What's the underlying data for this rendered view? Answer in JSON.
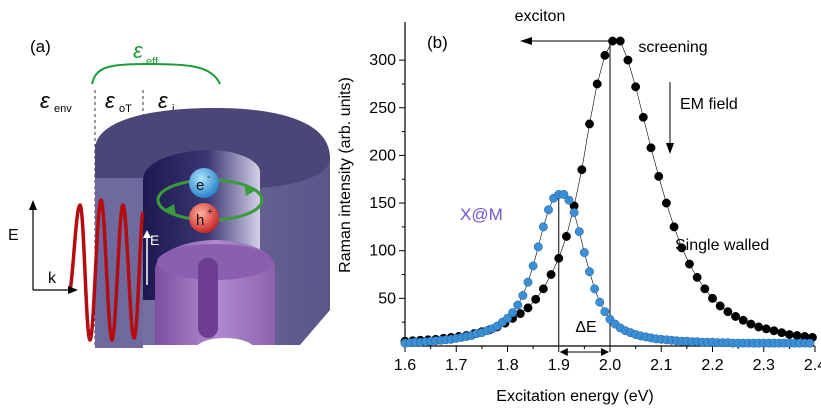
{
  "figure": {
    "panel_a_label": "(a)",
    "panel_b_label": "(b)"
  },
  "schematic": {
    "eps_eff": "ε",
    "eps_eff_sub": "eff",
    "eps_env": "ε",
    "eps_env_sub": "env",
    "eps_oT": "ε",
    "eps_oT_sub": "oT",
    "eps_i": "ε",
    "eps_i_sub": "i",
    "label_E_outer": "E",
    "label_k": "k",
    "label_E_inner": "E",
    "electron_label": "e",
    "electron_sup": "-",
    "hole_label": "h",
    "hole_sup": "+",
    "colors": {
      "eps_eff": "#1a9c3a",
      "tube_dark": "#4a4678",
      "tube_mid": "#6b6699",
      "tube_light": "#b9b4d6",
      "inner_tube": "#9a72b8",
      "wave": "#b30d12",
      "electron": "#2b8fd6",
      "hole": "#d62b2b",
      "arrow_green": "#3b9b3b"
    }
  },
  "annotations": {
    "exciton": "exciton",
    "screening": "screening",
    "em_field": "EM field",
    "xm_label": "X@M",
    "single_walled": "Single walled",
    "delta_e": "ΔE"
  },
  "chart_data": {
    "type": "scatter",
    "xlabel": "Excitation energy (eV)",
    "ylabel": "Raman intensity (arb. units)",
    "xlim": [
      1.6,
      2.4
    ],
    "ylim": [
      0,
      340
    ],
    "x_ticks": [
      "1.6",
      "1.7",
      "1.8",
      "1.9",
      "2.0",
      "2.1",
      "2.2",
      "2.3",
      "2.4"
    ],
    "y_ticks": [
      "50",
      "100",
      "150",
      "200",
      "250",
      "300"
    ],
    "x_tick_values": [
      1.6,
      1.7,
      1.8,
      1.9,
      2.0,
      2.1,
      2.2,
      2.3,
      2.4
    ],
    "y_tick_values": [
      50,
      100,
      150,
      200,
      250,
      300
    ],
    "grid": false,
    "series": [
      {
        "name": "Single walled",
        "color": "#000000",
        "x": [
          1.6,
          1.615,
          1.63,
          1.645,
          1.66,
          1.675,
          1.69,
          1.705,
          1.72,
          1.735,
          1.75,
          1.765,
          1.78,
          1.795,
          1.81,
          1.825,
          1.84,
          1.855,
          1.87,
          1.885,
          1.9,
          1.915,
          1.93,
          1.945,
          1.96,
          1.975,
          1.99,
          2.005,
          2.02,
          2.035,
          2.05,
          2.065,
          2.08,
          2.095,
          2.11,
          2.125,
          2.14,
          2.155,
          2.17,
          2.185,
          2.2,
          2.215,
          2.23,
          2.245,
          2.26,
          2.275,
          2.29,
          2.305,
          2.32,
          2.335,
          2.35,
          2.365,
          2.38,
          2.395
        ],
        "values": [
          5,
          5.5,
          6,
          6.5,
          7,
          8,
          9,
          10,
          11,
          13,
          15,
          17,
          20,
          24,
          29,
          34,
          40,
          49,
          60,
          75,
          92,
          115,
          147,
          185,
          233,
          275,
          305,
          320,
          320,
          300,
          272,
          240,
          208,
          178,
          150,
          125,
          103,
          86,
          72,
          60,
          50,
          42,
          36,
          31,
          27,
          23,
          20,
          18,
          16,
          14,
          12,
          11,
          10,
          9
        ]
      },
      {
        "name": "X@M",
        "color": "#3a8fd6",
        "x": [
          1.6,
          1.61,
          1.62,
          1.63,
          1.64,
          1.65,
          1.66,
          1.67,
          1.68,
          1.69,
          1.7,
          1.71,
          1.72,
          1.73,
          1.74,
          1.75,
          1.76,
          1.77,
          1.78,
          1.79,
          1.8,
          1.81,
          1.82,
          1.83,
          1.84,
          1.85,
          1.86,
          1.87,
          1.88,
          1.89,
          1.9,
          1.91,
          1.92,
          1.93,
          1.94,
          1.95,
          1.96,
          1.97,
          1.98,
          1.99,
          2.0,
          2.01,
          2.02,
          2.03,
          2.04,
          2.05,
          2.06,
          2.07,
          2.08,
          2.09,
          2.1,
          2.11,
          2.12,
          2.13,
          2.14,
          2.15,
          2.16,
          2.17,
          2.18,
          2.19,
          2.2,
          2.21,
          2.22,
          2.23,
          2.24,
          2.25,
          2.26,
          2.27,
          2.28,
          2.29,
          2.3,
          2.31,
          2.32,
          2.33,
          2.34,
          2.35,
          2.36,
          2.37,
          2.38,
          2.39
        ],
        "values": [
          3,
          3.5,
          4,
          4,
          4.5,
          5,
          5.5,
          6,
          6.5,
          7,
          8,
          9,
          10,
          11,
          13,
          14,
          16,
          18,
          21,
          25,
          29,
          35,
          43,
          53,
          67,
          84,
          104,
          125,
          143,
          155,
          159,
          159,
          153,
          140,
          120,
          98,
          78,
          60,
          46,
          36,
          28,
          23,
          19,
          16,
          14,
          12,
          10.5,
          9.5,
          8.5,
          7.5,
          7,
          6.5,
          6,
          5.5,
          5,
          5,
          4.5,
          4.5,
          4,
          4,
          4,
          3.5,
          3.5,
          3.5,
          3,
          3,
          3,
          3,
          3,
          3,
          3,
          3,
          3,
          3,
          3,
          3,
          3,
          3,
          3,
          3
        ]
      }
    ],
    "guide_lines": [
      {
        "name": "x-m-peak-line",
        "x": 1.9,
        "y_top": 159
      },
      {
        "name": "single-walled-peak-line",
        "x": 2.0,
        "y_top": 320
      }
    ]
  }
}
